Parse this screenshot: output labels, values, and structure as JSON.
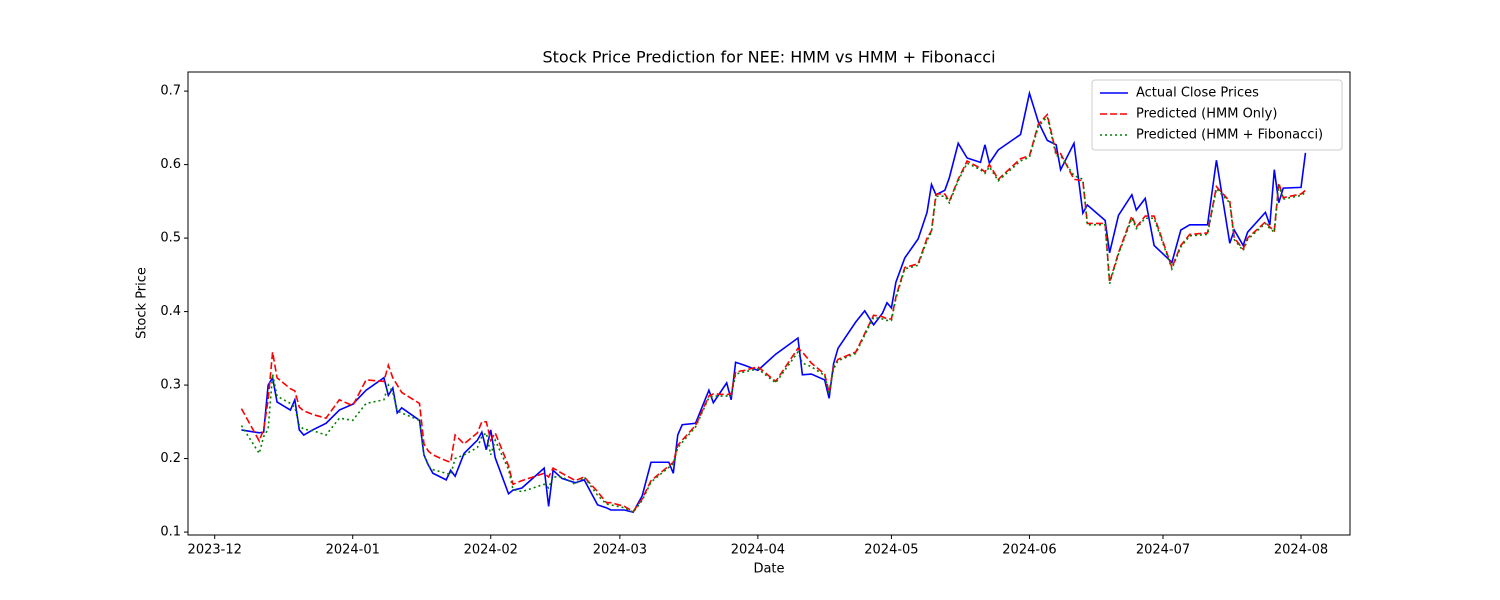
{
  "chart_data": {
    "type": "line",
    "title": "Stock Price Prediction for NEE: HMM vs HMM + Fibonacci",
    "x_label": "Date",
    "y_label": "Stock Price",
    "x": [
      19698,
      19702,
      19703,
      19704,
      19705,
      19706,
      19709,
      19710,
      19711,
      19712,
      19714,
      19717,
      19720,
      19723,
      19726,
      19730,
      19731,
      19732,
      19733,
      19734,
      19738,
      19739,
      19740,
      19741,
      19744,
      19745,
      19746,
      19748,
      19751,
      19752,
      19753,
      19754,
      19755,
      19758,
      19759,
      19761,
      19766,
      19767,
      19768,
      19770,
      19773,
      19775,
      19778,
      19780,
      19781,
      19784,
      19786,
      19788,
      19790,
      19794,
      19795,
      19796,
      19797,
      19800,
      19803,
      19804,
      19807,
      19808,
      19809,
      19811,
      19814,
      19818,
      19823,
      19824,
      19826,
      19829,
      19830,
      19831,
      19832,
      19836,
      19838,
      19840,
      19842,
      19843,
      19844,
      19845,
      19847,
      19850,
      19852,
      19853,
      19854,
      19856,
      19857,
      19859,
      19861,
      19864,
      19865,
      19866,
      19868,
      19873,
      19875,
      19877,
      19879,
      19881,
      19882,
      19885,
      19887,
      19888,
      19892,
      19893,
      19895,
      19898,
      19899,
      19901,
      19903,
      19907,
      19909,
      19911,
      19915,
      19917,
      19920,
      19921,
      19923,
      19924,
      19928,
      19929,
      19930,
      19931,
      19932,
      19936,
      19937
    ],
    "series": [
      {
        "name": "Actual Close Prices",
        "color": "#0000ff",
        "linestyle": "solid",
        "values": [
          0.239,
          0.235,
          0.236,
          0.3,
          0.31,
          0.277,
          0.266,
          0.28,
          0.239,
          0.232,
          0.239,
          0.248,
          0.266,
          0.274,
          0.293,
          0.31,
          0.286,
          0.296,
          0.262,
          0.269,
          0.252,
          0.205,
          0.191,
          0.18,
          0.171,
          0.184,
          0.176,
          0.207,
          0.225,
          0.236,
          0.212,
          0.239,
          0.201,
          0.152,
          0.157,
          0.16,
          0.187,
          0.135,
          0.184,
          0.173,
          0.167,
          0.171,
          0.137,
          0.133,
          0.13,
          0.13,
          0.127,
          0.149,
          0.195,
          0.195,
          0.18,
          0.232,
          0.246,
          0.248,
          0.293,
          0.276,
          0.303,
          0.28,
          0.331,
          0.327,
          0.32,
          0.342,
          0.364,
          0.314,
          0.315,
          0.307,
          0.282,
          0.329,
          0.35,
          0.386,
          0.401,
          0.382,
          0.398,
          0.412,
          0.405,
          0.44,
          0.473,
          0.499,
          0.535,
          0.573,
          0.559,
          0.565,
          0.582,
          0.629,
          0.609,
          0.603,
          0.627,
          0.602,
          0.62,
          0.641,
          0.697,
          0.658,
          0.633,
          0.627,
          0.593,
          0.629,
          0.534,
          0.545,
          0.524,
          0.48,
          0.531,
          0.559,
          0.538,
          0.554,
          0.49,
          0.467,
          0.511,
          0.518,
          0.518,
          0.606,
          0.493,
          0.511,
          0.49,
          0.508,
          0.535,
          0.518,
          0.593,
          0.548,
          0.568,
          0.569,
          0.616
        ]
      },
      {
        "name": "Predicted (HMM Only)",
        "color": "#ff0000",
        "linestyle": "dashed",
        "values": [
          0.268,
          0.224,
          0.24,
          0.28,
          0.345,
          0.31,
          0.295,
          0.292,
          0.27,
          0.265,
          0.26,
          0.255,
          0.28,
          0.272,
          0.307,
          0.305,
          0.327,
          0.31,
          0.3,
          0.29,
          0.275,
          0.22,
          0.21,
          0.205,
          0.197,
          0.195,
          0.232,
          0.22,
          0.235,
          0.25,
          0.25,
          0.225,
          0.235,
          0.19,
          0.165,
          0.17,
          0.18,
          0.175,
          0.187,
          0.18,
          0.17,
          0.175,
          0.155,
          0.14,
          0.14,
          0.135,
          0.128,
          0.145,
          0.17,
          0.19,
          0.195,
          0.218,
          0.225,
          0.245,
          0.285,
          0.288,
          0.287,
          0.288,
          0.318,
          0.32,
          0.325,
          0.305,
          0.35,
          0.345,
          0.33,
          0.315,
          0.29,
          0.325,
          0.335,
          0.345,
          0.37,
          0.395,
          0.393,
          0.39,
          0.39,
          0.42,
          0.46,
          0.465,
          0.5,
          0.51,
          0.56,
          0.56,
          0.55,
          0.58,
          0.605,
          0.595,
          0.59,
          0.6,
          0.58,
          0.608,
          0.612,
          0.655,
          0.668,
          0.615,
          0.615,
          0.58,
          0.578,
          0.52,
          0.52,
          0.44,
          0.48,
          0.53,
          0.515,
          0.53,
          0.53,
          0.46,
          0.49,
          0.505,
          0.507,
          0.57,
          0.55,
          0.5,
          0.485,
          0.5,
          0.522,
          0.515,
          0.51,
          0.575,
          0.555,
          0.56,
          0.565
        ]
      },
      {
        "name": "Predicted (HMM + Fibonacci)",
        "color": "#008000",
        "linestyle": "dotted",
        "values": [
          0.245,
          0.207,
          0.23,
          0.24,
          0.315,
          0.285,
          0.275,
          0.27,
          0.245,
          0.24,
          0.238,
          0.232,
          0.255,
          0.252,
          0.275,
          0.28,
          0.3,
          0.29,
          0.265,
          0.262,
          0.252,
          0.205,
          0.19,
          0.185,
          0.18,
          0.178,
          0.2,
          0.205,
          0.215,
          0.23,
          0.235,
          0.205,
          0.225,
          0.185,
          0.158,
          0.155,
          0.165,
          0.16,
          0.175,
          0.175,
          0.165,
          0.175,
          0.15,
          0.138,
          0.137,
          0.133,
          0.127,
          0.143,
          0.168,
          0.188,
          0.193,
          0.215,
          0.222,
          0.243,
          0.283,
          0.285,
          0.285,
          0.285,
          0.315,
          0.318,
          0.322,
          0.303,
          0.345,
          0.33,
          0.325,
          0.313,
          0.288,
          0.322,
          0.333,
          0.343,
          0.368,
          0.392,
          0.39,
          0.388,
          0.388,
          0.418,
          0.458,
          0.463,
          0.497,
          0.508,
          0.557,
          0.557,
          0.548,
          0.578,
          0.602,
          0.593,
          0.588,
          0.597,
          0.578,
          0.605,
          0.61,
          0.652,
          0.665,
          0.612,
          0.612,
          0.585,
          0.58,
          0.518,
          0.518,
          0.438,
          0.478,
          0.527,
          0.513,
          0.527,
          0.527,
          0.458,
          0.488,
          0.503,
          0.505,
          0.567,
          0.548,
          0.498,
          0.483,
          0.498,
          0.52,
          0.513,
          0.508,
          0.572,
          0.553,
          0.558,
          0.562
        ]
      }
    ],
    "xlim": [
      19686,
      19947
    ],
    "xticks": [
      {
        "value": 19692,
        "label": "2023-12"
      },
      {
        "value": 19723,
        "label": "2024-01"
      },
      {
        "value": 19754,
        "label": "2024-02"
      },
      {
        "value": 19783,
        "label": "2024-03"
      },
      {
        "value": 19814,
        "label": "2024-04"
      },
      {
        "value": 19844,
        "label": "2024-05"
      },
      {
        "value": 19875,
        "label": "2024-06"
      },
      {
        "value": 19905,
        "label": "2024-07"
      },
      {
        "value": 19936,
        "label": "2024-08"
      }
    ],
    "ylim": [
      0.096,
      0.726
    ],
    "yticks": [
      0.1,
      0.2,
      0.3,
      0.4,
      0.5,
      0.6,
      0.7
    ],
    "grid": false,
    "legend": "upper right"
  }
}
